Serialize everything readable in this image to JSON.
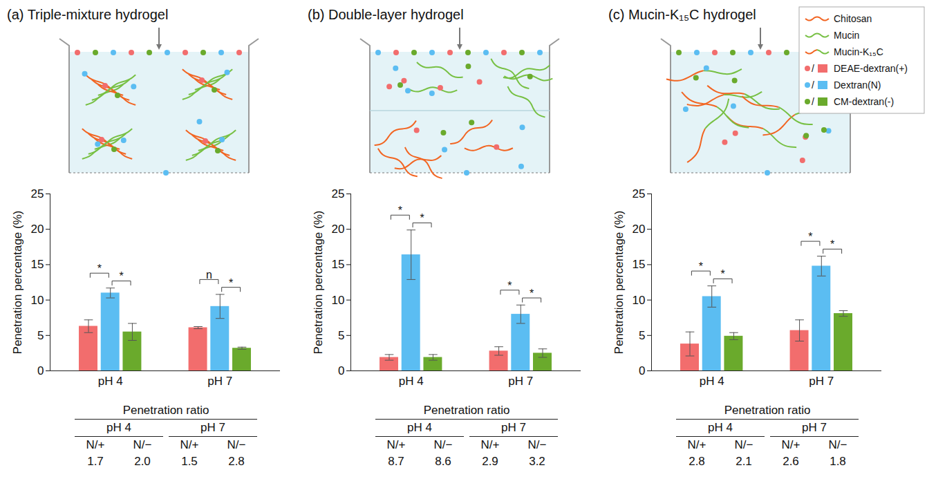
{
  "chart_data": [
    {
      "type": "bar",
      "title": "(a) Triple-mixture hydrogel",
      "categories": [
        "pH 4",
        "pH 7"
      ],
      "ylabel": "Penetration percentage (%)",
      "ylim": [
        0,
        25
      ],
      "yticks": [
        0,
        5,
        10,
        15,
        20,
        25
      ],
      "series": [
        {
          "name": "DEAE-dextran(+)",
          "color": "#f26d6d",
          "values": [
            6.3,
            6.1
          ],
          "errors": [
            0.9,
            0.15
          ]
        },
        {
          "name": "Dextran(N)",
          "color": "#5bbdf2",
          "values": [
            11.0,
            9.1
          ],
          "errors": [
            0.7,
            1.7
          ]
        },
        {
          "name": "CM-dextran(-)",
          "color": "#6aaa2c",
          "values": [
            5.5,
            3.2
          ],
          "errors": [
            1.2,
            0.15
          ]
        }
      ],
      "annotations": [
        {
          "category": "pH 4",
          "between": [
            "DEAE-dextran(+)",
            "Dextran(N)"
          ],
          "label": "*"
        },
        {
          "category": "pH 4",
          "between": [
            "Dextran(N)",
            "CM-dextran(-)"
          ],
          "label": "*"
        },
        {
          "category": "pH 7",
          "between": [
            "DEAE-dextran(+)",
            "Dextran(N)"
          ],
          "label": "n"
        },
        {
          "category": "pH 7",
          "between": [
            "Dextran(N)",
            "CM-dextran(-)"
          ],
          "label": "*"
        }
      ]
    },
    {
      "type": "bar",
      "title": "(b) Double-layer hydrogel",
      "categories": [
        "pH 4",
        "pH 7"
      ],
      "ylabel": "Penetration percentage (%)",
      "ylim": [
        0,
        25
      ],
      "yticks": [
        0,
        5,
        10,
        15,
        20,
        25
      ],
      "series": [
        {
          "name": "DEAE-dextran(+)",
          "color": "#f26d6d",
          "values": [
            1.9,
            2.8
          ],
          "errors": [
            0.4,
            0.6
          ]
        },
        {
          "name": "Dextran(N)",
          "color": "#5bbdf2",
          "values": [
            16.4,
            8.0
          ],
          "errors": [
            3.5,
            1.3
          ]
        },
        {
          "name": "CM-dextran(-)",
          "color": "#6aaa2c",
          "values": [
            1.9,
            2.5
          ],
          "errors": [
            0.4,
            0.6
          ]
        }
      ],
      "annotations": [
        {
          "category": "pH 4",
          "between": [
            "DEAE-dextran(+)",
            "Dextran(N)"
          ],
          "label": "*"
        },
        {
          "category": "pH 4",
          "between": [
            "Dextran(N)",
            "CM-dextran(-)"
          ],
          "label": "*"
        },
        {
          "category": "pH 7",
          "between": [
            "DEAE-dextran(+)",
            "Dextran(N)"
          ],
          "label": "*"
        },
        {
          "category": "pH 7",
          "between": [
            "Dextran(N)",
            "CM-dextran(-)"
          ],
          "label": "*"
        }
      ]
    },
    {
      "type": "bar",
      "title": "(c) Mucin-K₁₅C hydrogel",
      "categories": [
        "pH 4",
        "pH 7"
      ],
      "ylabel": "Penetration percentage (%)",
      "ylim": [
        0,
        25
      ],
      "yticks": [
        0,
        5,
        10,
        15,
        20,
        25
      ],
      "series": [
        {
          "name": "DEAE-dextran(+)",
          "color": "#f26d6d",
          "values": [
            3.8,
            5.7
          ],
          "errors": [
            1.7,
            1.5
          ]
        },
        {
          "name": "Dextran(N)",
          "color": "#5bbdf2",
          "values": [
            10.5,
            14.8
          ],
          "errors": [
            1.5,
            1.4
          ]
        },
        {
          "name": "CM-dextran(-)",
          "color": "#6aaa2c",
          "values": [
            4.9,
            8.1
          ],
          "errors": [
            0.5,
            0.4
          ]
        }
      ],
      "annotations": [
        {
          "category": "pH 4",
          "between": [
            "DEAE-dextran(+)",
            "Dextran(N)"
          ],
          "label": "*"
        },
        {
          "category": "pH 4",
          "between": [
            "Dextran(N)",
            "CM-dextran(-)"
          ],
          "label": "*"
        },
        {
          "category": "pH 7",
          "between": [
            "DEAE-dextran(+)",
            "Dextran(N)"
          ],
          "label": "*"
        },
        {
          "category": "pH 7",
          "between": [
            "Dextran(N)",
            "CM-dextran(-)"
          ],
          "label": "*"
        }
      ]
    }
  ],
  "schematic_legend": {
    "polymers": [
      {
        "name": "Chitosan",
        "color": "#f26522"
      },
      {
        "name": "Mucin",
        "color": "#77c043"
      },
      {
        "name": "Mucin-K₁₅C",
        "colors": [
          "#f26522",
          "#77c043"
        ]
      }
    ],
    "separator": "/"
  },
  "tables": [
    {
      "title": "Penetration ratio",
      "groups": [
        "pH 4",
        "pH 7"
      ],
      "columns": [
        "N/+",
        "N/−",
        "N/+",
        "N/−"
      ],
      "values": [
        "1.7",
        "2.0",
        "1.5",
        "2.8"
      ]
    },
    {
      "title": "Penetration ratio",
      "groups": [
        "pH 4",
        "pH 7"
      ],
      "columns": [
        "N/+",
        "N/−",
        "N/+",
        "N/−"
      ],
      "values": [
        "8.7",
        "8.6",
        "2.9",
        "3.2"
      ]
    },
    {
      "title": "Penetration ratio",
      "groups": [
        "pH 4",
        "pH 7"
      ],
      "columns": [
        "N/+",
        "N/−",
        "N/+",
        "N/−"
      ],
      "values": [
        "2.8",
        "2.1",
        "2.6",
        "1.8"
      ]
    }
  ]
}
